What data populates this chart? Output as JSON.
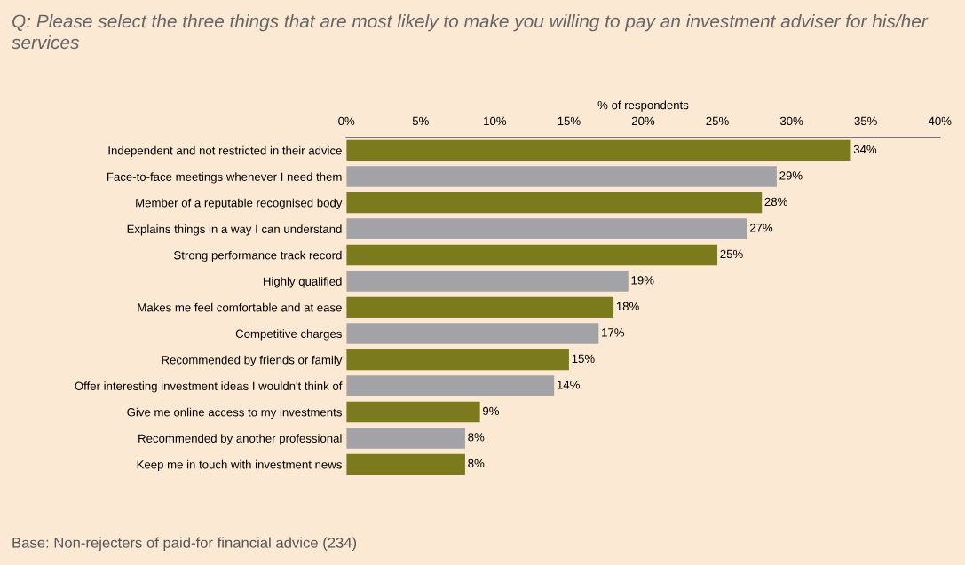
{
  "chart_data": {
    "type": "bar",
    "orientation": "horizontal",
    "title": "Q: Please select the three things that are most likely to make you willing to pay an investment adviser for his/her services",
    "xlabel": "% of respondents",
    "categories": [
      "Independent and not restricted in their advice",
      "Face-to-face meetings whenever I need them",
      "Member of a reputable recognised body",
      "Explains things in a way I can understand",
      "Strong performance track record",
      "Highly qualified",
      "Makes me feel comfortable and at ease",
      "Competitive charges",
      "Recommended by friends or family",
      "Offer interesting investment ideas I wouldn't think of",
      "Give me online access to my investments",
      "Recommended by another professional",
      "Keep me in touch with investment news"
    ],
    "values": [
      34,
      29,
      28,
      27,
      25,
      19,
      18,
      17,
      15,
      14,
      9,
      8,
      8
    ],
    "value_labels": [
      "34%",
      "29%",
      "28%",
      "27%",
      "25%",
      "19%",
      "18%",
      "17%",
      "15%",
      "14%",
      "9%",
      "8%",
      "8%"
    ],
    "colors": [
      "#7b7a1c",
      "#a3a3a7",
      "#7b7a1c",
      "#a3a3a7",
      "#7b7a1c",
      "#a3a3a7",
      "#7b7a1c",
      "#a3a3a7",
      "#7b7a1c",
      "#a3a3a7",
      "#7b7a1c",
      "#a3a3a7",
      "#7b7a1c"
    ],
    "xlim": [
      0,
      40
    ],
    "xticks": [
      {
        "value": 0,
        "label": "0%"
      },
      {
        "value": 5,
        "label": "5%"
      },
      {
        "value": 10,
        "label": "10%"
      },
      {
        "value": 15,
        "label": "15%"
      },
      {
        "value": 20,
        "label": "20%"
      },
      {
        "value": 25,
        "label": "25%"
      },
      {
        "value": 30,
        "label": "30%"
      },
      {
        "value": 35,
        "label": "35%"
      },
      {
        "value": 40,
        "label": "40%"
      }
    ],
    "grid": false,
    "annotations": [
      "Base: Non-rejecters of paid-for financial advice (234)"
    ]
  }
}
